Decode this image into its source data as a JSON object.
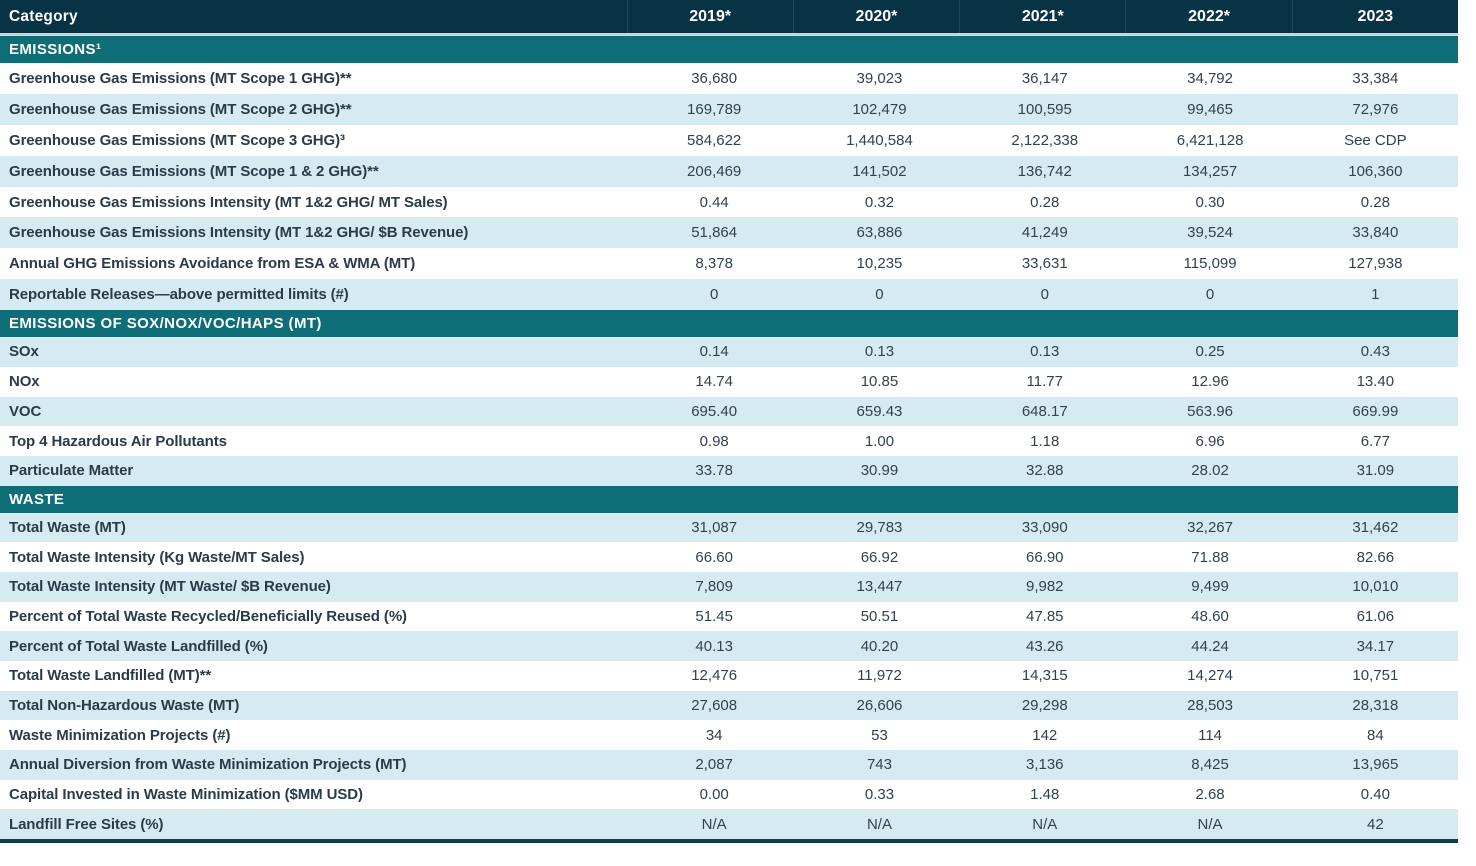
{
  "colors": {
    "header_bg": "#083345",
    "header_text": "#ffffff",
    "section_bg": "#0e6d77",
    "shaded_row": "#d6ebf1",
    "gap_line": "#cfd5d6",
    "label_text": "#2a3b49",
    "value_text": "#32424e",
    "rule": "#0e3d50"
  },
  "chart_data": {
    "type": "table",
    "category_header": "Category",
    "columns": [
      "2019*",
      "2020*",
      "2021*",
      "2022*",
      "2023"
    ],
    "sections": [
      {
        "title": "EMISSIONS¹",
        "first_row_shaded": false,
        "rows": [
          {
            "label": "Greenhouse Gas Emissions (MT Scope 1 GHG)**",
            "values": [
              "36,680",
              "39,023",
              "36,147",
              "34,792",
              "33,384"
            ]
          },
          {
            "label": "Greenhouse Gas Emissions (MT Scope 2 GHG)**",
            "values": [
              "169,789",
              "102,479",
              "100,595",
              "99,465",
              "72,976"
            ]
          },
          {
            "label": "Greenhouse Gas Emissions (MT Scope 3 GHG)³",
            "values": [
              "584,622",
              "1,440,584",
              "2,122,338",
              "6,421,128",
              "See CDP"
            ]
          },
          {
            "label": "Greenhouse Gas Emissions (MT Scope 1 & 2 GHG)**",
            "values": [
              "206,469",
              "141,502",
              "136,742",
              "134,257",
              "106,360"
            ]
          },
          {
            "label": "Greenhouse Gas Emissions Intensity (MT 1&2 GHG/ MT Sales)",
            "values": [
              "0.44",
              "0.32",
              "0.28",
              "0.30",
              "0.28"
            ]
          },
          {
            "label": "Greenhouse Gas Emissions Intensity (MT 1&2 GHG/ $B Revenue)",
            "values": [
              "51,864",
              "63,886",
              "41,249",
              "39,524",
              "33,840"
            ]
          },
          {
            "label": "Annual GHG Emissions Avoidance from ESA & WMA (MT)",
            "values": [
              "8,378",
              "10,235",
              "33,631",
              "115,099",
              "127,938"
            ]
          },
          {
            "label": "Reportable Releases—above permitted limits (#)",
            "values": [
              "0",
              "0",
              "0",
              "0",
              "1"
            ]
          }
        ]
      },
      {
        "title": "EMISSIONS OF SOX/NOX/VOC/HAPS (MT)",
        "first_row_shaded": true,
        "rows": [
          {
            "label": "SOx",
            "values": [
              "0.14",
              "0.13",
              "0.13",
              "0.25",
              "0.43"
            ]
          },
          {
            "label": "NOx",
            "values": [
              "14.74",
              "10.85",
              "11.77",
              "12.96",
              "13.40"
            ]
          },
          {
            "label": "VOC",
            "values": [
              "695.40",
              "659.43",
              "648.17",
              "563.96",
              "669.99"
            ]
          },
          {
            "label": "Top 4 Hazardous Air Pollutants",
            "values": [
              "0.98",
              "1.00",
              "1.18",
              "6.96",
              "6.77"
            ]
          },
          {
            "label": "Particulate Matter",
            "values": [
              "33.78",
              "30.99",
              "32.88",
              "28.02",
              "31.09"
            ]
          }
        ]
      },
      {
        "title": "WASTE",
        "first_row_shaded": true,
        "rows": [
          {
            "label": "Total Waste (MT)",
            "values": [
              "31,087",
              "29,783",
              "33,090",
              "32,267",
              "31,462"
            ]
          },
          {
            "label": "Total Waste Intensity (Kg Waste/MT Sales)",
            "values": [
              "66.60",
              "66.92",
              "66.90",
              "71.88",
              "82.66"
            ]
          },
          {
            "label": "Total Waste Intensity (MT Waste/ $B Revenue)",
            "values": [
              "7,809",
              "13,447",
              "9,982",
              "9,499",
              "10,010"
            ]
          },
          {
            "label": "Percent of Total Waste Recycled/Beneficially Reused (%)",
            "values": [
              "51.45",
              "50.51",
              "47.85",
              "48.60",
              "61.06"
            ]
          },
          {
            "label": "Percent of Total Waste Landfilled (%)",
            "values": [
              "40.13",
              "40.20",
              "43.26",
              "44.24",
              "34.17"
            ]
          },
          {
            "label": "Total Waste Landfilled (MT)**",
            "values": [
              "12,476",
              "11,972",
              "14,315",
              "14,274",
              "10,751"
            ]
          },
          {
            "label": "Total Non-Hazardous Waste (MT)",
            "values": [
              "27,608",
              "26,606",
              "29,298",
              "28,503",
              "28,318"
            ]
          },
          {
            "label": "Waste Minimization Projects (#)",
            "values": [
              "34",
              "53",
              "142",
              "114",
              "84"
            ]
          },
          {
            "label": "Annual Diversion from Waste Minimization Projects (MT)",
            "values": [
              "2,087",
              "743",
              "3,136",
              "8,425",
              "13,965"
            ]
          },
          {
            "label": "Capital Invested in Waste Minimization ($MM USD)",
            "values": [
              "0.00",
              "0.33",
              "1.48",
              "2.68",
              "0.40"
            ]
          },
          {
            "label": "Landfill Free Sites (%)",
            "values": [
              "N/A",
              "N/A",
              "N/A",
              "N/A",
              "42"
            ]
          }
        ]
      }
    ]
  }
}
